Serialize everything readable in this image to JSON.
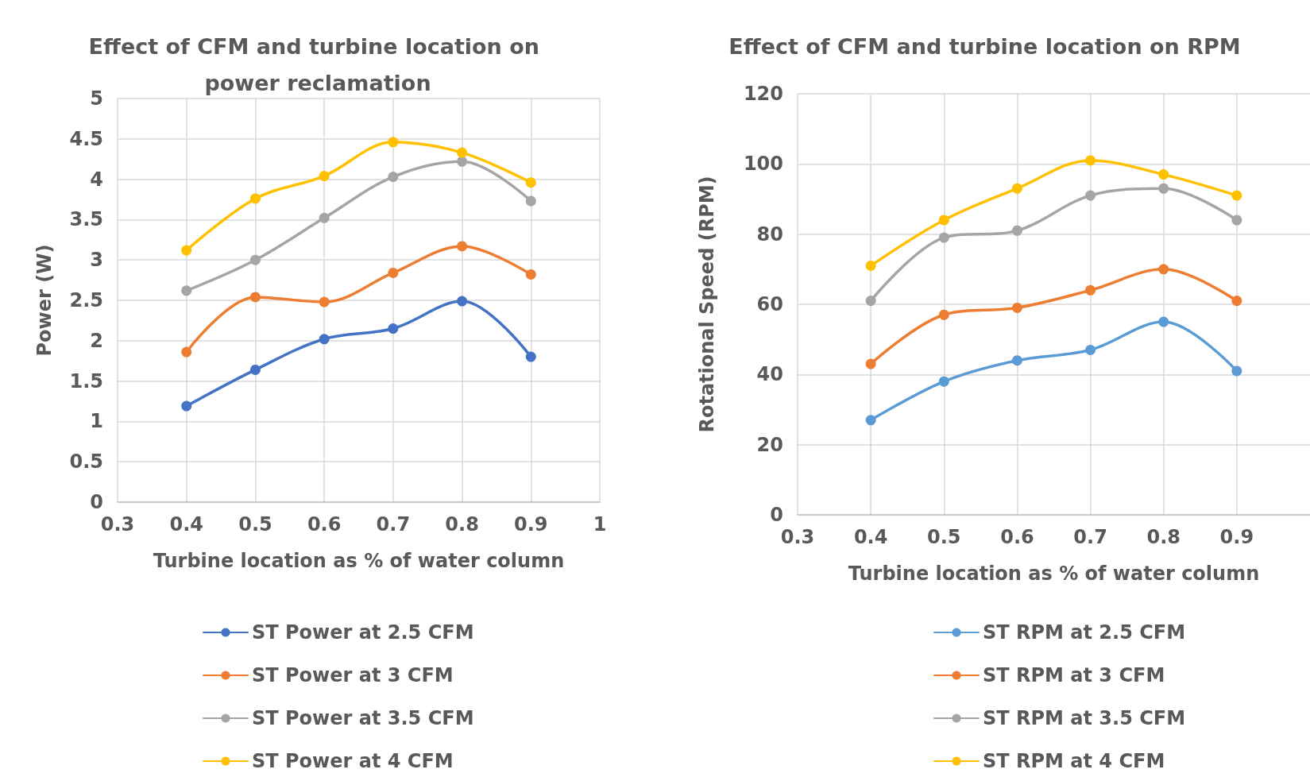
{
  "chart_data": [
    {
      "type": "line",
      "title": "Effect of CFM and turbine location on power reclamation",
      "xlabel": "Turbine location as % of water column",
      "ylabel": "Power (W)",
      "x": [
        0.4,
        0.5,
        0.6,
        0.7,
        0.8,
        0.9
      ],
      "xlim": [
        0.3,
        1
      ],
      "xticks": [
        0.3,
        0.4,
        0.5,
        0.6,
        0.7,
        0.8,
        0.9,
        1
      ],
      "ylim": [
        0,
        5
      ],
      "yticks": [
        0,
        0.5,
        1,
        1.5,
        2,
        2.5,
        3,
        3.5,
        4,
        4.5,
        5
      ],
      "grid": true,
      "legend": "bottom",
      "marker": "circle",
      "series": [
        {
          "name": "ST Power at 2.5 CFM",
          "color": "#4472c4",
          "values": [
            1.19,
            1.64,
            2.02,
            2.15,
            2.49,
            1.8
          ]
        },
        {
          "name": "ST Power at 3 CFM",
          "color": "#ed7d31",
          "values": [
            1.86,
            2.54,
            2.48,
            2.84,
            3.17,
            2.82
          ]
        },
        {
          "name": "ST Power at 3.5 CFM",
          "color": "#a5a5a5",
          "values": [
            2.62,
            3.0,
            3.52,
            4.03,
            4.22,
            3.73
          ]
        },
        {
          "name": "ST Power at 4 CFM",
          "color": "#ffc000",
          "values": [
            3.12,
            3.76,
            4.04,
            4.46,
            4.33,
            3.96
          ]
        }
      ]
    },
    {
      "type": "line",
      "title": "Effect of CFM and turbine location on RPM",
      "xlabel": "Turbine location as % of water column",
      "ylabel": "Rotational Speed (RPM)",
      "x": [
        0.4,
        0.5,
        0.6,
        0.7,
        0.8,
        0.9
      ],
      "xlim": [
        0.3,
        1
      ],
      "xticks": [
        0.3,
        0.4,
        0.5,
        0.6,
        0.7,
        0.8,
        0.9
      ],
      "ylim": [
        0,
        120
      ],
      "yticks": [
        0,
        20,
        40,
        60,
        80,
        100,
        120
      ],
      "grid": true,
      "legend": "bottom",
      "marker": "circle",
      "series": [
        {
          "name": "ST RPM at 2.5 CFM",
          "color": "#5b9bd5",
          "values": [
            27,
            38,
            44,
            47,
            55,
            41
          ]
        },
        {
          "name": "ST RPM at 3 CFM",
          "color": "#ed7d31",
          "values": [
            43,
            57,
            59,
            64,
            70,
            61
          ]
        },
        {
          "name": "ST RPM at 3.5 CFM",
          "color": "#a5a5a5",
          "values": [
            61,
            79,
            81,
            91,
            93,
            84
          ]
        },
        {
          "name": "ST RPM at 4 CFM",
          "color": "#ffc000",
          "values": [
            71,
            84,
            93,
            101,
            97,
            91
          ]
        }
      ]
    }
  ]
}
